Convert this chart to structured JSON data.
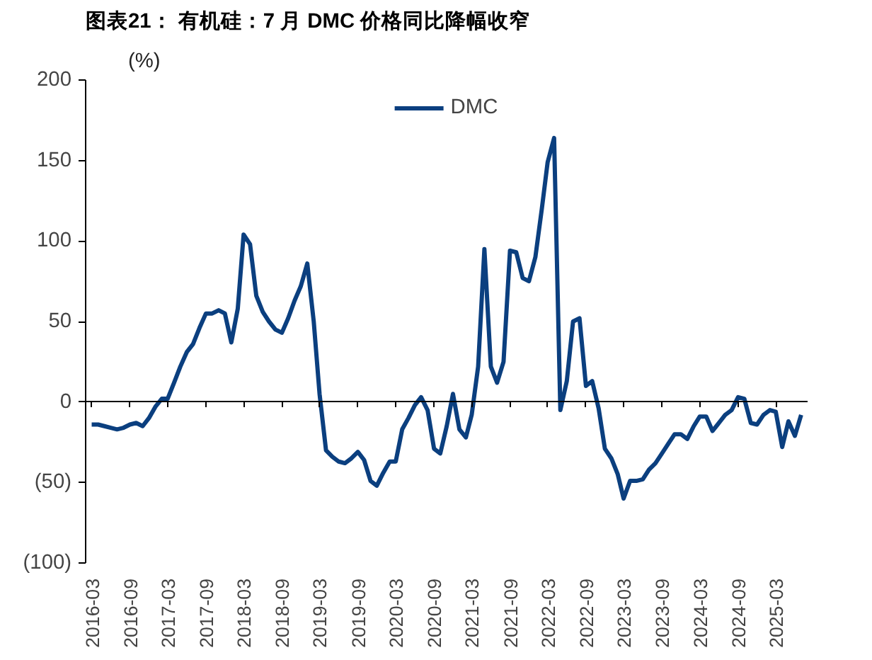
{
  "chart_data": {
    "type": "line",
    "title": "图表21：  有机硅：7 月 DMC 价格同比降幅收窄",
    "ylabel": "(%)",
    "x": [
      "2016-03",
      "2016-04",
      "2016-05",
      "2016-06",
      "2016-07",
      "2016-08",
      "2016-09",
      "2016-10",
      "2016-11",
      "2016-12",
      "2017-01",
      "2017-02",
      "2017-03",
      "2017-04",
      "2017-05",
      "2017-06",
      "2017-07",
      "2017-08",
      "2017-09",
      "2017-10",
      "2017-11",
      "2017-12",
      "2018-01",
      "2018-02",
      "2018-03",
      "2018-04",
      "2018-05",
      "2018-06",
      "2018-07",
      "2018-08",
      "2018-09",
      "2018-10",
      "2018-11",
      "2018-12",
      "2019-01",
      "2019-02",
      "2019-03",
      "2019-04",
      "2019-05",
      "2019-06",
      "2019-07",
      "2019-08",
      "2019-09",
      "2019-10",
      "2019-11",
      "2019-12",
      "2020-01",
      "2020-02",
      "2020-03",
      "2020-04",
      "2020-05",
      "2020-06",
      "2020-07",
      "2020-08",
      "2020-09",
      "2020-10",
      "2020-11",
      "2020-12",
      "2021-01",
      "2021-02",
      "2021-03",
      "2021-04",
      "2021-05",
      "2021-06",
      "2021-07",
      "2021-08",
      "2021-09",
      "2021-10",
      "2021-11",
      "2021-12",
      "2022-01",
      "2022-02",
      "2022-03",
      "2022-04",
      "2022-05",
      "2022-06",
      "2022-07",
      "2022-08",
      "2022-09",
      "2022-10",
      "2022-11",
      "2022-12",
      "2023-01",
      "2023-02",
      "2023-03",
      "2023-04",
      "2023-05",
      "2023-06",
      "2023-07",
      "2023-08",
      "2023-09",
      "2023-10",
      "2023-11",
      "2023-12",
      "2024-01",
      "2024-02",
      "2024-03",
      "2024-04",
      "2024-05",
      "2024-06",
      "2024-07",
      "2024-08",
      "2024-09",
      "2024-10",
      "2024-11",
      "2024-12",
      "2025-01",
      "2025-02",
      "2025-03",
      "2025-04",
      "2025-05",
      "2025-06",
      "2025-07"
    ],
    "series": [
      {
        "name": "DMC",
        "color": "#0b3f7f",
        "values": [
          -14,
          -14,
          -15,
          -16,
          -17,
          -16,
          -14,
          -13,
          -15,
          -10,
          -3,
          2,
          2,
          12,
          22,
          31,
          36,
          46,
          55,
          55,
          57,
          55,
          37,
          58,
          104,
          98,
          66,
          56,
          50,
          45,
          43,
          52,
          63,
          72,
          86,
          50,
          5,
          -30,
          -34,
          -37,
          -38,
          -35,
          -31,
          -36,
          -49,
          -52,
          -44,
          -37,
          -37,
          -17,
          -10,
          -2,
          3,
          -5,
          -29,
          -32,
          -15,
          5,
          -17,
          -22,
          -8,
          22,
          95,
          22,
          12,
          25,
          94,
          93,
          77,
          75,
          90,
          120,
          149,
          164,
          -5,
          13,
          50,
          52,
          10,
          13,
          -4,
          -29,
          -35,
          -45,
          -60,
          -49,
          -49,
          -48,
          -42,
          -38,
          -32,
          -26,
          -20,
          -20,
          -23,
          -15,
          -9,
          -9,
          -18,
          -13,
          -8,
          -5,
          3,
          2,
          -13,
          -14,
          -8,
          -5,
          -6,
          -28,
          -12,
          -21,
          -8
        ]
      }
    ],
    "xlim": [
      "2016-02",
      "2025-08"
    ],
    "xticks": [
      "2016-03",
      "2016-09",
      "2017-03",
      "2017-09",
      "2018-03",
      "2018-09",
      "2019-03",
      "2019-09",
      "2020-03",
      "2020-09",
      "2021-03",
      "2021-09",
      "2022-03",
      "2022-09",
      "2023-03",
      "2023-09",
      "2024-03",
      "2024-09",
      "2025-03"
    ],
    "ylim": [
      -100,
      200
    ],
    "yticks": [
      {
        "value": -100,
        "label": "(100)"
      },
      {
        "value": -50,
        "label": "(50)"
      },
      0,
      50,
      100,
      150,
      200
    ],
    "legend": "top",
    "marker": "none",
    "line_style": "solid"
  }
}
